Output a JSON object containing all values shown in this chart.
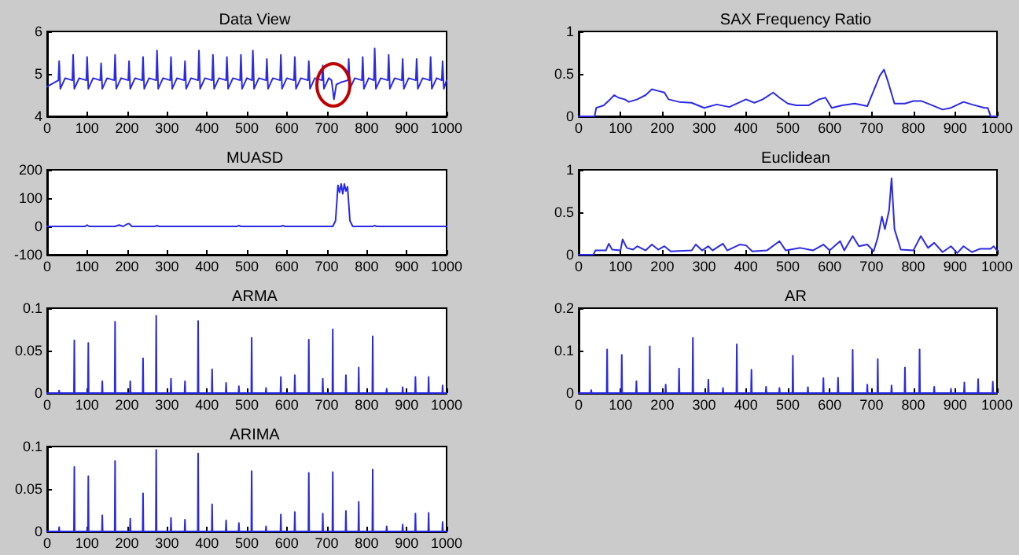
{
  "chart_data": [
    {
      "type": "line",
      "title": "Data View",
      "xlim": [
        0,
        1000
      ],
      "xticks": [
        0,
        100,
        200,
        300,
        400,
        500,
        600,
        700,
        800,
        900,
        1000
      ],
      "ylim": [
        4,
        6
      ],
      "yticks": [
        4,
        5,
        6
      ],
      "grid": false,
      "series": [
        {
          "color": "#2a2ae6",
          "x": [
            0,
            28,
            30,
            33,
            45,
            63,
            65,
            68,
            80,
            98,
            100,
            103,
            115,
            133,
            135,
            138,
            150,
            168,
            170,
            173,
            185,
            203,
            205,
            208,
            220,
            238,
            240,
            243,
            255,
            273,
            275,
            278,
            290,
            308,
            310,
            313,
            325,
            343,
            345,
            348,
            360,
            378,
            380,
            383,
            395,
            413,
            415,
            418,
            430,
            448,
            450,
            453,
            465,
            483,
            485,
            488,
            500,
            513,
            515,
            518,
            530,
            548,
            550,
            553,
            565,
            583,
            585,
            588,
            600,
            618,
            620,
            623,
            635,
            653,
            655,
            658,
            670,
            688,
            690,
            693,
            705,
            712,
            718,
            724,
            735,
            753,
            755,
            758,
            770,
            788,
            790,
            793,
            805,
            818,
            820,
            823,
            835,
            853,
            855,
            858,
            870,
            888,
            890,
            893,
            905,
            923,
            925,
            928,
            940,
            958,
            960,
            963,
            975,
            988,
            990,
            993,
            1000
          ],
          "values": [
            4.7,
            4.85,
            5.3,
            4.65,
            4.9,
            4.85,
            5.45,
            4.65,
            4.9,
            4.85,
            5.4,
            4.65,
            4.9,
            4.85,
            5.25,
            4.65,
            4.9,
            4.85,
            5.45,
            4.65,
            4.9,
            4.85,
            5.3,
            4.65,
            4.9,
            4.85,
            5.4,
            4.65,
            4.9,
            4.85,
            5.55,
            4.65,
            4.9,
            4.85,
            5.4,
            4.65,
            4.9,
            4.85,
            5.3,
            4.65,
            4.9,
            4.85,
            5.55,
            4.65,
            4.9,
            4.85,
            5.45,
            4.65,
            4.9,
            4.85,
            5.4,
            4.65,
            4.9,
            4.85,
            5.45,
            4.65,
            4.9,
            4.85,
            5.55,
            4.65,
            4.9,
            4.85,
            5.35,
            4.65,
            4.9,
            4.85,
            5.45,
            4.65,
            4.9,
            4.85,
            5.4,
            4.65,
            4.9,
            4.85,
            5.3,
            4.65,
            4.9,
            4.85,
            5.2,
            4.65,
            4.9,
            4.85,
            4.4,
            4.75,
            4.8,
            4.85,
            5.35,
            4.65,
            4.9,
            4.85,
            5.4,
            4.65,
            4.9,
            4.85,
            5.6,
            4.65,
            4.9,
            4.85,
            5.45,
            4.65,
            4.9,
            4.85,
            5.35,
            4.65,
            4.9,
            4.85,
            5.35,
            4.65,
            4.9,
            4.85,
            5.4,
            4.65,
            4.9,
            4.85,
            5.3,
            4.65,
            4.85
          ]
        }
      ]
    },
    {
      "type": "line",
      "title": "SAX Frequency Ratio",
      "xlim": [
        0,
        1000
      ],
      "xticks": [
        0,
        100,
        200,
        300,
        400,
        500,
        600,
        700,
        800,
        900,
        1000
      ],
      "ylim": [
        0,
        1
      ],
      "yticks": [
        0,
        0.5,
        1
      ],
      "grid": false,
      "series": [
        {
          "color": "#2a2ae6",
          "x": [
            0,
            38,
            42,
            60,
            75,
            85,
            95,
            110,
            120,
            140,
            160,
            175,
            190,
            205,
            215,
            240,
            270,
            300,
            330,
            360,
            400,
            420,
            440,
            465,
            480,
            500,
            520,
            550,
            575,
            590,
            605,
            630,
            660,
            690,
            705,
            720,
            730,
            740,
            755,
            780,
            800,
            820,
            840,
            870,
            890,
            920,
            940,
            970,
            978,
            985,
            1000
          ],
          "values": [
            0,
            0,
            0.1,
            0.13,
            0.2,
            0.25,
            0.22,
            0.2,
            0.17,
            0.2,
            0.25,
            0.32,
            0.3,
            0.28,
            0.2,
            0.17,
            0.16,
            0.1,
            0.14,
            0.11,
            0.2,
            0.16,
            0.2,
            0.28,
            0.22,
            0.15,
            0.13,
            0.13,
            0.2,
            0.22,
            0.1,
            0.13,
            0.15,
            0.12,
            0.3,
            0.48,
            0.55,
            0.4,
            0.15,
            0.15,
            0.18,
            0.18,
            0.14,
            0.08,
            0.1,
            0.17,
            0.14,
            0.1,
            0.1,
            0,
            0
          ]
        }
      ]
    },
    {
      "type": "line",
      "title": "MUASD",
      "xlim": [
        0,
        1000
      ],
      "xticks": [
        0,
        100,
        200,
        300,
        400,
        500,
        600,
        700,
        800,
        900,
        1000
      ],
      "ylim": [
        -100,
        200
      ],
      "yticks": [
        -100,
        0,
        100,
        200
      ],
      "grid": false,
      "series": [
        {
          "color": "#2a2ae6",
          "x": [
            0,
            95,
            100,
            105,
            170,
            180,
            190,
            200,
            205,
            212,
            270,
            275,
            280,
            475,
            480,
            485,
            585,
            590,
            595,
            715,
            722,
            728,
            732,
            736,
            740,
            744,
            748,
            752,
            758,
            765,
            815,
            820,
            825,
            1000
          ],
          "values": [
            0,
            0,
            5,
            0,
            0,
            5,
            0,
            8,
            10,
            0,
            0,
            3,
            0,
            0,
            3,
            0,
            0,
            3,
            0,
            0,
            20,
            145,
            120,
            150,
            115,
            150,
            125,
            140,
            20,
            0,
            0,
            3,
            0,
            0
          ]
        }
      ]
    },
    {
      "type": "line",
      "title": "Euclidean",
      "xlim": [
        0,
        1000
      ],
      "xticks": [
        0,
        100,
        200,
        300,
        400,
        500,
        600,
        700,
        800,
        900,
        1000
      ],
      "ylim": [
        0,
        1
      ],
      "yticks": [
        0,
        0.5,
        1
      ],
      "grid": false,
      "series": [
        {
          "color": "#2a2ae6",
          "x": [
            0,
            35,
            40,
            65,
            72,
            80,
            100,
            105,
            115,
            130,
            140,
            160,
            175,
            190,
            205,
            220,
            270,
            280,
            295,
            310,
            320,
            345,
            355,
            385,
            400,
            415,
            450,
            480,
            495,
            530,
            560,
            585,
            600,
            625,
            635,
            655,
            670,
            690,
            705,
            715,
            725,
            732,
            742,
            748,
            755,
            770,
            800,
            818,
            835,
            850,
            870,
            890,
            905,
            920,
            940,
            960,
            985,
            992,
            1000
          ],
          "values": [
            0,
            0,
            0.05,
            0.05,
            0.13,
            0.06,
            0.05,
            0.18,
            0.08,
            0.06,
            0.1,
            0.05,
            0.12,
            0.06,
            0.1,
            0.04,
            0.05,
            0.12,
            0.05,
            0.1,
            0.05,
            0.13,
            0.05,
            0.12,
            0.11,
            0.04,
            0.05,
            0.16,
            0.05,
            0.08,
            0.05,
            0.12,
            0.05,
            0.16,
            0.05,
            0.22,
            0.1,
            0.12,
            0.04,
            0.2,
            0.45,
            0.3,
            0.52,
            0.9,
            0.3,
            0.06,
            0.05,
            0.22,
            0.08,
            0.14,
            0.03,
            0.1,
            0.02,
            0.1,
            0.03,
            0.07,
            0.07,
            0.1,
            0.05
          ]
        }
      ]
    },
    {
      "type": "line",
      "title": "ARMA",
      "xlim": [
        0,
        1000
      ],
      "xticks": [
        0,
        100,
        200,
        300,
        400,
        500,
        600,
        700,
        800,
        900,
        1000
      ],
      "ylim": [
        0,
        0.1
      ],
      "yticks": [
        0,
        0.05,
        0.1
      ],
      "grid": false,
      "series": [
        {
          "color": "#2a2ae6",
          "x": [
            0,
            29,
            30,
            31,
            67,
            68,
            69,
            102,
            103,
            104,
            137,
            138,
            139,
            169,
            170,
            171,
            207,
            208,
            209,
            239,
            240,
            241,
            272,
            273,
            274,
            309,
            310,
            311,
            344,
            345,
            346,
            377,
            378,
            379,
            412,
            413,
            414,
            447,
            448,
            449,
            479,
            480,
            481,
            511,
            512,
            513,
            547,
            548,
            549,
            584,
            585,
            586,
            619,
            620,
            621,
            654,
            655,
            656,
            689,
            690,
            691,
            714,
            715,
            716,
            747,
            748,
            749,
            779,
            780,
            781,
            814,
            815,
            816,
            849,
            850,
            851,
            889,
            890,
            891,
            921,
            922,
            923,
            954,
            955,
            956,
            989,
            990,
            991,
            1000
          ],
          "values": [
            0,
            0,
            0.003,
            0,
            0,
            0.062,
            0,
            0,
            0.059,
            0,
            0,
            0.014,
            0,
            0,
            0.084,
            0,
            0,
            0.014,
            0,
            0,
            0.041,
            0,
            0,
            0.091,
            0,
            0,
            0.017,
            0,
            0,
            0.014,
            0,
            0,
            0.085,
            0,
            0,
            0.028,
            0,
            0,
            0.012,
            0,
            0,
            0.008,
            0,
            0,
            0.065,
            0,
            0,
            0.006,
            0,
            0,
            0.019,
            0,
            0,
            0.021,
            0,
            0,
            0.063,
            0,
            0,
            0.017,
            0,
            0,
            0.075,
            0,
            0,
            0.021,
            0,
            0,
            0.03,
            0,
            0,
            0.067,
            0,
            0,
            0.005,
            0,
            0,
            0.007,
            0,
            0,
            0.019,
            0,
            0,
            0.019,
            0,
            0,
            0.009,
            0,
            0
          ]
        }
      ]
    },
    {
      "type": "line",
      "title": "AR",
      "xlim": [
        0,
        1000
      ],
      "xticks": [
        0,
        100,
        200,
        300,
        400,
        500,
        600,
        700,
        800,
        900,
        1000
      ],
      "ylim": [
        0,
        0.2
      ],
      "yticks": [
        0,
        0.1,
        0.2
      ],
      "grid": false,
      "series": [
        {
          "color": "#2a2ae6",
          "x": [
            0,
            29,
            30,
            31,
            67,
            68,
            69,
            102,
            103,
            104,
            137,
            138,
            139,
            169,
            170,
            171,
            207,
            208,
            209,
            239,
            240,
            241,
            272,
            273,
            274,
            309,
            310,
            311,
            344,
            345,
            346,
            377,
            378,
            379,
            412,
            413,
            414,
            447,
            448,
            449,
            479,
            480,
            481,
            511,
            512,
            513,
            547,
            548,
            549,
            584,
            585,
            586,
            619,
            620,
            621,
            654,
            655,
            656,
            689,
            690,
            691,
            714,
            715,
            716,
            747,
            748,
            749,
            779,
            780,
            781,
            814,
            815,
            816,
            849,
            850,
            851,
            889,
            890,
            891,
            921,
            922,
            923,
            954,
            955,
            956,
            989,
            990,
            991,
            1000
          ],
          "values": [
            0,
            0,
            0.007,
            0,
            0,
            0.103,
            0,
            0,
            0.09,
            0,
            0,
            0.028,
            0,
            0,
            0.11,
            0,
            0,
            0.02,
            0,
            0,
            0.058,
            0,
            0,
            0.13,
            0,
            0,
            0.032,
            0,
            0,
            0.012,
            0,
            0,
            0.115,
            0,
            0,
            0.055,
            0,
            0,
            0.015,
            0,
            0,
            0.012,
            0,
            0,
            0.088,
            0,
            0,
            0.014,
            0,
            0,
            0.035,
            0,
            0,
            0.036,
            0,
            0,
            0.102,
            0,
            0,
            0.02,
            0,
            0,
            0.08,
            0,
            0,
            0.018,
            0,
            0,
            0.06,
            0,
            0,
            0.103,
            0,
            0,
            0.015,
            0,
            0,
            0.01,
            0,
            0,
            0.025,
            0,
            0,
            0.033,
            0,
            0,
            0.027,
            0,
            0
          ]
        }
      ]
    },
    {
      "type": "line",
      "title": "ARIMA",
      "xlim": [
        0,
        1000
      ],
      "xticks": [
        0,
        100,
        200,
        300,
        400,
        500,
        600,
        700,
        800,
        900,
        1000
      ],
      "ylim": [
        0,
        0.1
      ],
      "yticks": [
        0,
        0.05,
        0.1
      ],
      "grid": false,
      "series": [
        {
          "color": "#2a2ae6",
          "x": [
            0,
            29,
            30,
            31,
            67,
            68,
            69,
            102,
            103,
            104,
            137,
            138,
            139,
            169,
            170,
            171,
            207,
            208,
            209,
            239,
            240,
            241,
            272,
            273,
            274,
            309,
            310,
            311,
            344,
            345,
            346,
            377,
            378,
            379,
            412,
            413,
            414,
            447,
            448,
            449,
            479,
            480,
            481,
            511,
            512,
            513,
            547,
            548,
            549,
            584,
            585,
            586,
            619,
            620,
            621,
            654,
            655,
            656,
            689,
            690,
            691,
            714,
            715,
            716,
            747,
            748,
            749,
            779,
            780,
            781,
            814,
            815,
            816,
            849,
            850,
            851,
            889,
            890,
            891,
            921,
            922,
            923,
            954,
            955,
            956,
            989,
            990,
            991,
            1000
          ],
          "values": [
            0,
            0,
            0.005,
            0,
            0,
            0.076,
            0,
            0,
            0.065,
            0,
            0,
            0.019,
            0,
            0,
            0.083,
            0,
            0,
            0.015,
            0,
            0,
            0.045,
            0,
            0,
            0.096,
            0,
            0,
            0.016,
            0,
            0,
            0.014,
            0,
            0,
            0.092,
            0,
            0,
            0.032,
            0,
            0,
            0.013,
            0,
            0,
            0.01,
            0,
            0,
            0.071,
            0,
            0,
            0.006,
            0,
            0,
            0.02,
            0,
            0,
            0.023,
            0,
            0,
            0.069,
            0,
            0,
            0.021,
            0,
            0,
            0.07,
            0,
            0,
            0.024,
            0,
            0,
            0.035,
            0,
            0,
            0.073,
            0,
            0,
            0.006,
            0,
            0,
            0.008,
            0,
            0,
            0.021,
            0,
            0,
            0.022,
            0,
            0,
            0.011,
            0,
            0
          ]
        }
      ]
    }
  ]
}
